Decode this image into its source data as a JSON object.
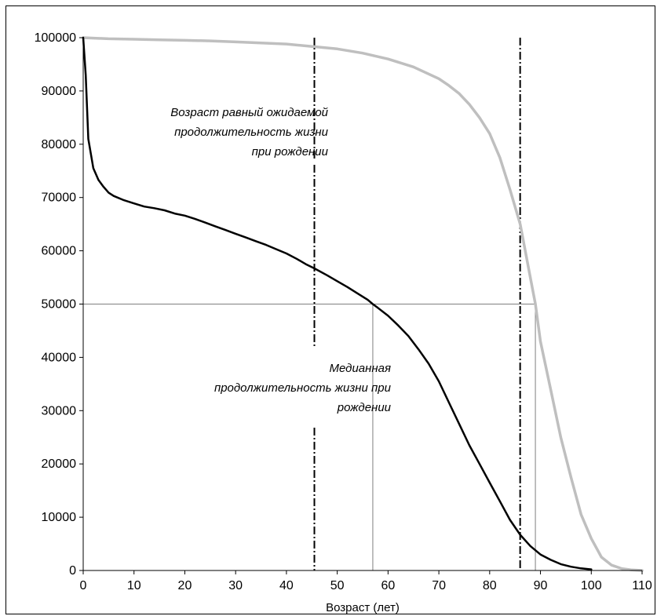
{
  "chart_data": {
    "type": "line",
    "title": "",
    "xlabel": "Возраст (лет)",
    "ylabel": "",
    "xlim": [
      0,
      110
    ],
    "ylim": [
      0,
      100000
    ],
    "x_ticks": [
      0,
      10,
      20,
      30,
      40,
      50,
      60,
      70,
      80,
      90,
      100,
      110
    ],
    "y_ticks": [
      0,
      10000,
      20000,
      30000,
      40000,
      50000,
      60000,
      70000,
      80000,
      90000,
      100000
    ],
    "grid": false,
    "legend": "none",
    "series": [
      {
        "color": "#000000",
        "x": [
          0,
          0.5,
          1,
          2,
          3,
          4,
          5,
          6,
          8,
          10,
          12,
          14,
          16,
          18,
          20,
          22,
          24,
          26,
          28,
          30,
          32,
          34,
          36,
          38,
          40,
          42,
          44,
          45.5,
          48,
          50,
          52,
          54,
          56,
          57,
          58,
          60,
          62,
          64,
          66,
          68,
          70,
          72,
          74,
          76,
          78,
          80,
          82,
          84,
          86,
          88,
          90,
          92,
          94,
          96,
          98,
          100
        ],
        "y": [
          100000,
          93000,
          81000,
          75500,
          73300,
          72000,
          70900,
          70300,
          69500,
          68900,
          68300,
          68000,
          67600,
          67000,
          66600,
          66000,
          65300,
          64600,
          63900,
          63200,
          62500,
          61800,
          61100,
          60300,
          59500,
          58500,
          57400,
          56700,
          55400,
          54300,
          53200,
          52000,
          50800,
          50000,
          49300,
          47800,
          46000,
          44000,
          41500,
          38800,
          35500,
          31500,
          27500,
          23500,
          20000,
          16500,
          13000,
          9500,
          6700,
          4600,
          3000,
          2000,
          1200,
          700,
          400,
          200
        ]
      },
      {
        "color": "#bfbfbf",
        "x": [
          0,
          5,
          10,
          15,
          20,
          25,
          30,
          35,
          40,
          45.5,
          50,
          55,
          60,
          65,
          70,
          72,
          74,
          76,
          78,
          80,
          82,
          84,
          86,
          88,
          89,
          90,
          92,
          94,
          96,
          98,
          100,
          102,
          104,
          106,
          108,
          110
        ],
        "y": [
          100000,
          99800,
          99700,
          99600,
          99500,
          99400,
          99200,
          99000,
          98800,
          98300,
          97900,
          97100,
          96000,
          94500,
          92300,
          91000,
          89500,
          87500,
          85000,
          82000,
          77500,
          71500,
          65000,
          55000,
          50000,
          43000,
          34000,
          25000,
          17500,
          10500,
          6000,
          2500,
          1000,
          350,
          100,
          0
        ]
      }
    ],
    "reference_lines": {
      "horizontal_y": 50000,
      "median_x": [
        57,
        89
      ],
      "expectancy_x": [
        45.5,
        86
      ]
    },
    "annotations": {
      "expectancy": [
        "Возраст равный ожидаемой",
        "продолжительность жизни",
        "при рождении"
      ],
      "median": [
        "Медианная",
        "продолжительность жизни при",
        "рождении"
      ]
    }
  }
}
